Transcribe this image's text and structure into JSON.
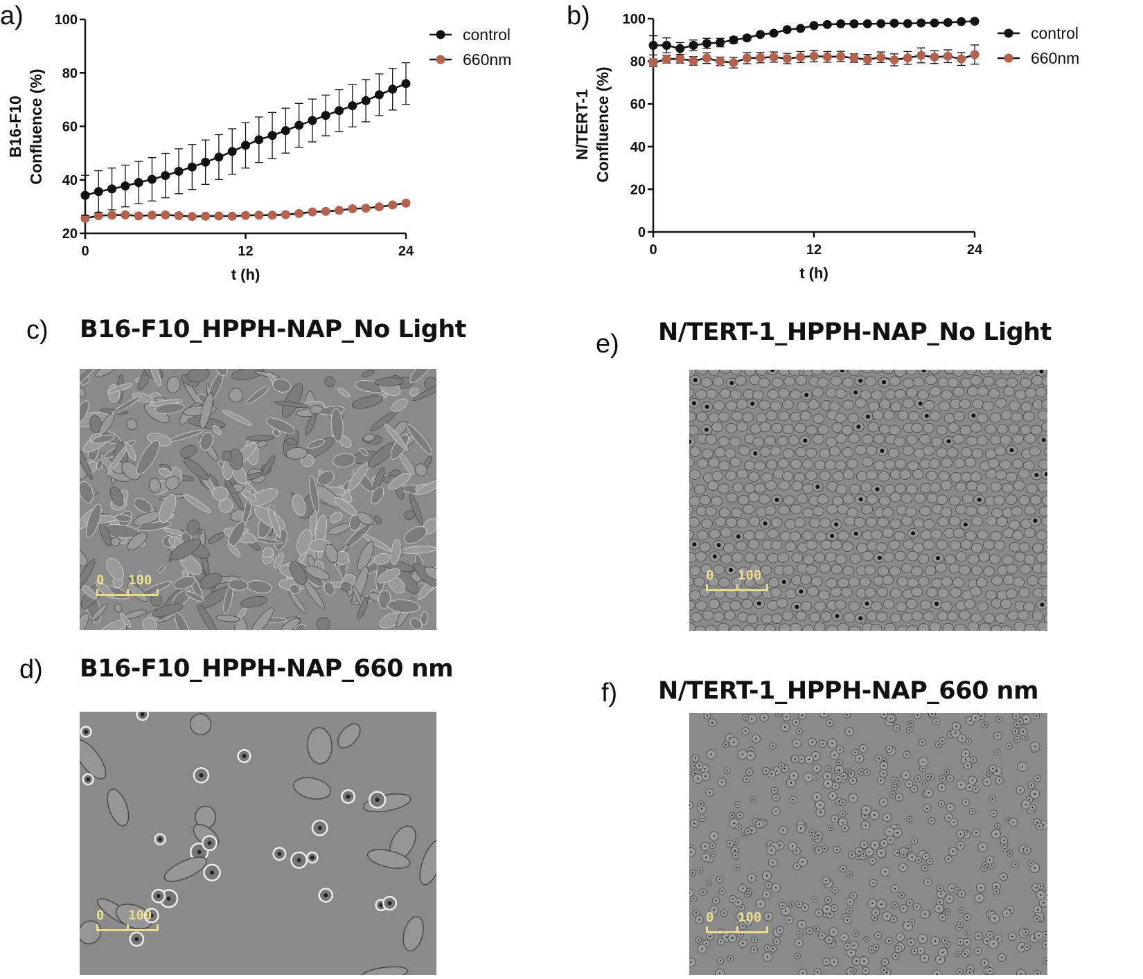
{
  "panels": {
    "a": "a)",
    "b": "b)",
    "c": "c)",
    "d": "d)",
    "e": "e)",
    "f": "f)"
  },
  "micrographs": {
    "c": {
      "title": "B16-F10_HPPH-NAP_No Light",
      "scale_start": "0",
      "scale_end": "100"
    },
    "d": {
      "title": "B16-F10_HPPH-NAP_660 nm",
      "scale_start": "0",
      "scale_end": "100"
    },
    "e": {
      "title": "N/TERT-1_HPPH-NAP_No Light",
      "scale_start": "0",
      "scale_end": "100"
    },
    "f": {
      "title": "N/TERT-1_HPPH-NAP_660 nm",
      "scale_start": "0",
      "scale_end": "100"
    }
  },
  "colors": {
    "control": "#111111",
    "light": "#b5614c",
    "micro_bg": "#8a8a8a",
    "scale": "#e8dc8a"
  },
  "chart_data": [
    {
      "type": "line",
      "panel": "a",
      "ylabel_line1": "B16-F10",
      "ylabel_line2": "Confluence (%)",
      "xlabel": "t (h)",
      "xlim": [
        0,
        24
      ],
      "ylim": [
        20,
        100
      ],
      "xticks": [
        0,
        12,
        24
      ],
      "yticks": [
        20,
        40,
        60,
        80,
        100
      ],
      "legend_position": "top-right",
      "x": [
        0,
        1,
        2,
        3,
        4,
        5,
        6,
        7,
        8,
        9,
        10,
        11,
        12,
        13,
        14,
        15,
        16,
        17,
        18,
        19,
        20,
        21,
        22,
        23,
        24
      ],
      "series": [
        {
          "name": "control",
          "color": "#111111",
          "values": [
            34.2,
            35.6,
            36.6,
            37.7,
            39.0,
            40.2,
            41.6,
            43.2,
            44.8,
            46.6,
            48.5,
            50.6,
            52.9,
            55.0,
            56.6,
            58.4,
            60.4,
            62.2,
            64.1,
            65.9,
            67.7,
            69.6,
            71.8,
            73.9,
            76.0
          ],
          "errors": [
            7.5,
            7.8,
            7.8,
            7.8,
            7.9,
            8.1,
            8.3,
            8.4,
            8.4,
            8.3,
            8.4,
            8.5,
            8.5,
            8.5,
            8.6,
            8.4,
            8.2,
            8.0,
            7.6,
            7.8,
            7.9,
            7.9,
            7.8,
            7.8,
            7.8
          ]
        },
        {
          "name": "660nm",
          "color": "#b5614c",
          "values": [
            25.6,
            26.6,
            26.8,
            26.9,
            26.5,
            26.8,
            26.9,
            26.6,
            26.3,
            26.4,
            26.5,
            26.4,
            26.7,
            26.8,
            26.8,
            27.0,
            27.4,
            28.0,
            28.2,
            28.6,
            29.2,
            29.4,
            29.9,
            30.6,
            31.3
          ],
          "errors": [
            0.7,
            0.7,
            0.6,
            0.6,
            0.6,
            0.6,
            0.6,
            0.6,
            0.6,
            0.6,
            0.6,
            0.6,
            0.6,
            0.6,
            0.6,
            0.6,
            0.6,
            0.6,
            0.6,
            0.6,
            0.6,
            0.6,
            0.6,
            0.6,
            0.6
          ]
        }
      ]
    },
    {
      "type": "line",
      "panel": "b",
      "ylabel_line1": "N/TERT-1",
      "ylabel_line2": "Confluence (%)",
      "xlabel": "t (h)",
      "xlim": [
        0,
        24
      ],
      "ylim": [
        0,
        100
      ],
      "xticks": [
        0,
        12,
        24
      ],
      "yticks": [
        0,
        20,
        40,
        60,
        80,
        100
      ],
      "legend_position": "top-right",
      "x": [
        0,
        1,
        2,
        3,
        4,
        5,
        6,
        7,
        8,
        9,
        10,
        11,
        12,
        13,
        14,
        15,
        16,
        17,
        18,
        19,
        20,
        21,
        22,
        23,
        24
      ],
      "series": [
        {
          "name": "control",
          "color": "#111111",
          "values": [
            87.5,
            87.5,
            86.0,
            87.5,
            88.4,
            88.8,
            90.0,
            91.0,
            92.6,
            93.2,
            94.9,
            95.4,
            96.8,
            97.3,
            97.6,
            97.6,
            97.6,
            97.7,
            97.9,
            97.7,
            98.0,
            98.0,
            98.2,
            98.6,
            98.8
          ],
          "errors": [
            4.5,
            3.5,
            2.8,
            2.5,
            2.4,
            2.0,
            1.5,
            1.0,
            0.6,
            0.5,
            0.5,
            0.5,
            0.5,
            0.5,
            0.5,
            0.5,
            0.5,
            0.5,
            0.5,
            0.5,
            0.5,
            0.5,
            0.5,
            0.5,
            0.5
          ]
        },
        {
          "name": "660nm",
          "color": "#b5614c",
          "values": [
            79.3,
            81.0,
            81.2,
            80.2,
            81.5,
            80.0,
            79.4,
            81.5,
            81.7,
            82.0,
            81.3,
            82.0,
            82.5,
            82.1,
            82.3,
            81.5,
            80.9,
            81.9,
            80.7,
            81.6,
            82.8,
            82.0,
            82.4,
            81.1,
            83.2
          ],
          "errors": [
            1.8,
            1.8,
            2.0,
            2.0,
            2.5,
            2.0,
            2.5,
            2.6,
            2.4,
            2.4,
            2.4,
            2.6,
            2.7,
            2.5,
            2.4,
            2.0,
            2.3,
            2.5,
            2.8,
            3.0,
            3.5,
            3.0,
            3.0,
            3.0,
            4.5
          ]
        }
      ]
    }
  ]
}
